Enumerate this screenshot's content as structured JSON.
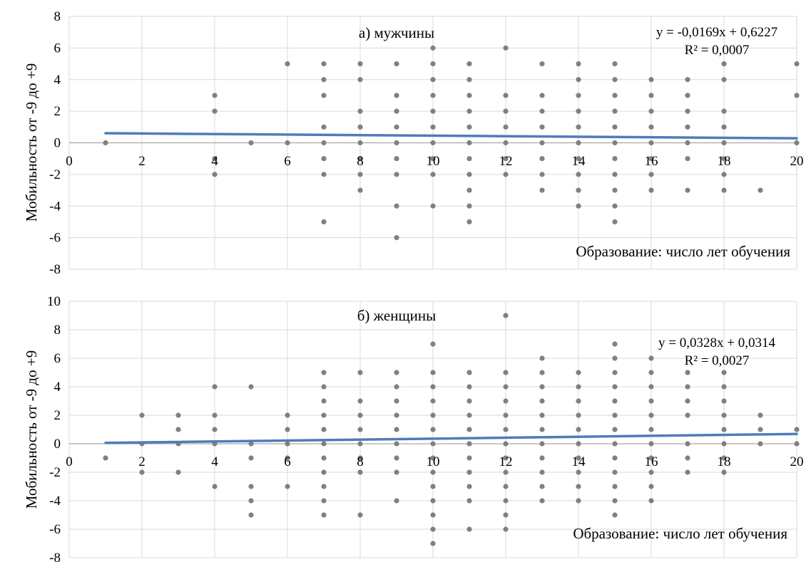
{
  "chart_data": [
    {
      "type": "scatter",
      "title": "а) мужчины",
      "xlabel": "Образование: число лет обучения",
      "ylabel": "Мобильность от -9 до +9",
      "xlim": [
        0,
        20
      ],
      "ylim": [
        -8,
        8
      ],
      "xticks": [
        0,
        2,
        4,
        6,
        8,
        10,
        12,
        14,
        16,
        18,
        20
      ],
      "yticks": [
        -8,
        -6,
        -4,
        -2,
        0,
        2,
        4,
        6,
        8
      ],
      "grid": true,
      "point_color": "#808080",
      "trendline_color": "#4a7ebb",
      "trendline": {
        "slope": -0.0169,
        "intercept": 0.6227
      },
      "equation": "y = -0,0169x + 0,6227",
      "r_squared": "R² = 0,0007",
      "points": [
        [
          1,
          0
        ],
        [
          4,
          3
        ],
        [
          4,
          2
        ],
        [
          4,
          -1
        ],
        [
          4,
          -2
        ],
        [
          5,
          0
        ],
        [
          6,
          5
        ],
        [
          6,
          0
        ],
        [
          7,
          5
        ],
        [
          7,
          4
        ],
        [
          7,
          3
        ],
        [
          7,
          1
        ],
        [
          7,
          0
        ],
        [
          7,
          -1
        ],
        [
          7,
          -2
        ],
        [
          7,
          -5
        ],
        [
          8,
          5
        ],
        [
          8,
          4
        ],
        [
          8,
          2
        ],
        [
          8,
          1
        ],
        [
          8,
          0
        ],
        [
          8,
          -1
        ],
        [
          8,
          -2
        ],
        [
          8,
          -3
        ],
        [
          9,
          5
        ],
        [
          9,
          3
        ],
        [
          9,
          2
        ],
        [
          9,
          1
        ],
        [
          9,
          0
        ],
        [
          9,
          -1
        ],
        [
          9,
          -2
        ],
        [
          9,
          -4
        ],
        [
          9,
          -6
        ],
        [
          10,
          6
        ],
        [
          10,
          5
        ],
        [
          10,
          4
        ],
        [
          10,
          3
        ],
        [
          10,
          2
        ],
        [
          10,
          1
        ],
        [
          10,
          0
        ],
        [
          10,
          -1
        ],
        [
          10,
          -2
        ],
        [
          10,
          -4
        ],
        [
          11,
          5
        ],
        [
          11,
          4
        ],
        [
          11,
          3
        ],
        [
          11,
          2
        ],
        [
          11,
          1
        ],
        [
          11,
          0
        ],
        [
          11,
          -1
        ],
        [
          11,
          -2
        ],
        [
          11,
          -3
        ],
        [
          11,
          -4
        ],
        [
          11,
          -5
        ],
        [
          12,
          6
        ],
        [
          12,
          3
        ],
        [
          12,
          2
        ],
        [
          12,
          1
        ],
        [
          12,
          0
        ],
        [
          12,
          -1
        ],
        [
          12,
          -2
        ],
        [
          13,
          5
        ],
        [
          13,
          3
        ],
        [
          13,
          2
        ],
        [
          13,
          1
        ],
        [
          13,
          0
        ],
        [
          13,
          -1
        ],
        [
          13,
          -2
        ],
        [
          13,
          -3
        ],
        [
          14,
          5
        ],
        [
          14,
          4
        ],
        [
          14,
          3
        ],
        [
          14,
          2
        ],
        [
          14,
          1
        ],
        [
          14,
          0
        ],
        [
          14,
          -1
        ],
        [
          14,
          -2
        ],
        [
          14,
          -3
        ],
        [
          14,
          -4
        ],
        [
          15,
          5
        ],
        [
          15,
          4
        ],
        [
          15,
          3
        ],
        [
          15,
          2
        ],
        [
          15,
          1
        ],
        [
          15,
          0
        ],
        [
          15,
          -1
        ],
        [
          15,
          -2
        ],
        [
          15,
          -3
        ],
        [
          15,
          -4
        ],
        [
          15,
          -5
        ],
        [
          16,
          4
        ],
        [
          16,
          3
        ],
        [
          16,
          2
        ],
        [
          16,
          1
        ],
        [
          16,
          0
        ],
        [
          16,
          -1
        ],
        [
          16,
          -2
        ],
        [
          16,
          -3
        ],
        [
          17,
          4
        ],
        [
          17,
          3
        ],
        [
          17,
          2
        ],
        [
          17,
          1
        ],
        [
          17,
          0
        ],
        [
          17,
          -1
        ],
        [
          17,
          -3
        ],
        [
          18,
          5
        ],
        [
          18,
          4
        ],
        [
          18,
          2
        ],
        [
          18,
          1
        ],
        [
          18,
          0
        ],
        [
          18,
          -1
        ],
        [
          18,
          -2
        ],
        [
          18,
          -3
        ],
        [
          19,
          -3
        ],
        [
          20,
          5
        ],
        [
          20,
          3
        ],
        [
          20,
          0
        ]
      ]
    },
    {
      "type": "scatter",
      "title": "б) женщины",
      "xlabel": "Образование: число лет обучения",
      "ylabel": "Мобильность от -9 до +9",
      "xlim": [
        0,
        20
      ],
      "ylim": [
        -8,
        10
      ],
      "xticks": [
        0,
        2,
        4,
        6,
        8,
        10,
        12,
        14,
        16,
        18,
        20
      ],
      "yticks": [
        -8,
        -6,
        -4,
        -2,
        0,
        2,
        4,
        6,
        8,
        10
      ],
      "grid": true,
      "point_color": "#808080",
      "trendline_color": "#4a7ebb",
      "trendline": {
        "slope": 0.0328,
        "intercept": 0.0314
      },
      "equation": "y = 0,0328x + 0,0314",
      "r_squared": "R² = 0,0027",
      "points": [
        [
          1,
          -1
        ],
        [
          2,
          2
        ],
        [
          2,
          0
        ],
        [
          2,
          -2
        ],
        [
          3,
          2
        ],
        [
          3,
          1
        ],
        [
          3,
          0
        ],
        [
          3,
          -2
        ],
        [
          4,
          4
        ],
        [
          4,
          2
        ],
        [
          4,
          1
        ],
        [
          4,
          0
        ],
        [
          4,
          -3
        ],
        [
          5,
          4
        ],
        [
          5,
          0
        ],
        [
          5,
          -1
        ],
        [
          5,
          -3
        ],
        [
          5,
          -4
        ],
        [
          5,
          -5
        ],
        [
          6,
          2
        ],
        [
          6,
          1
        ],
        [
          6,
          0
        ],
        [
          6,
          -1
        ],
        [
          6,
          -3
        ],
        [
          7,
          5
        ],
        [
          7,
          4
        ],
        [
          7,
          3
        ],
        [
          7,
          2
        ],
        [
          7,
          1
        ],
        [
          7,
          0
        ],
        [
          7,
          -1
        ],
        [
          7,
          -2
        ],
        [
          7,
          -3
        ],
        [
          7,
          -4
        ],
        [
          7,
          -5
        ],
        [
          8,
          5
        ],
        [
          8,
          3
        ],
        [
          8,
          2
        ],
        [
          8,
          1
        ],
        [
          8,
          0
        ],
        [
          8,
          -1
        ],
        [
          8,
          -2
        ],
        [
          8,
          -5
        ],
        [
          9,
          5
        ],
        [
          9,
          4
        ],
        [
          9,
          3
        ],
        [
          9,
          2
        ],
        [
          9,
          1
        ],
        [
          9,
          0
        ],
        [
          9,
          -1
        ],
        [
          9,
          -2
        ],
        [
          9,
          -4
        ],
        [
          10,
          7
        ],
        [
          10,
          5
        ],
        [
          10,
          4
        ],
        [
          10,
          3
        ],
        [
          10,
          2
        ],
        [
          10,
          1
        ],
        [
          10,
          0
        ],
        [
          10,
          -1
        ],
        [
          10,
          -2
        ],
        [
          10,
          -3
        ],
        [
          10,
          -4
        ],
        [
          10,
          -5
        ],
        [
          10,
          -6
        ],
        [
          10,
          -7
        ],
        [
          11,
          5
        ],
        [
          11,
          4
        ],
        [
          11,
          3
        ],
        [
          11,
          2
        ],
        [
          11,
          1
        ],
        [
          11,
          0
        ],
        [
          11,
          -1
        ],
        [
          11,
          -2
        ],
        [
          11,
          -3
        ],
        [
          11,
          -4
        ],
        [
          11,
          -6
        ],
        [
          12,
          9
        ],
        [
          12,
          5
        ],
        [
          12,
          4
        ],
        [
          12,
          3
        ],
        [
          12,
          2
        ],
        [
          12,
          1
        ],
        [
          12,
          0
        ],
        [
          12,
          -1
        ],
        [
          12,
          -2
        ],
        [
          12,
          -3
        ],
        [
          12,
          -4
        ],
        [
          12,
          -5
        ],
        [
          12,
          -6
        ],
        [
          13,
          6
        ],
        [
          13,
          5
        ],
        [
          13,
          4
        ],
        [
          13,
          3
        ],
        [
          13,
          2
        ],
        [
          13,
          1
        ],
        [
          13,
          0
        ],
        [
          13,
          -1
        ],
        [
          13,
          -2
        ],
        [
          13,
          -3
        ],
        [
          13,
          -4
        ],
        [
          14,
          5
        ],
        [
          14,
          4
        ],
        [
          14,
          3
        ],
        [
          14,
          2
        ],
        [
          14,
          1
        ],
        [
          14,
          0
        ],
        [
          14,
          -1
        ],
        [
          14,
          -2
        ],
        [
          14,
          -3
        ],
        [
          14,
          -4
        ],
        [
          15,
          7
        ],
        [
          15,
          6
        ],
        [
          15,
          5
        ],
        [
          15,
          4
        ],
        [
          15,
          3
        ],
        [
          15,
          2
        ],
        [
          15,
          1
        ],
        [
          15,
          0
        ],
        [
          15,
          -1
        ],
        [
          15,
          -2
        ],
        [
          15,
          -3
        ],
        [
          15,
          -4
        ],
        [
          15,
          -5
        ],
        [
          16,
          6
        ],
        [
          16,
          5
        ],
        [
          16,
          4
        ],
        [
          16,
          3
        ],
        [
          16,
          2
        ],
        [
          16,
          1
        ],
        [
          16,
          0
        ],
        [
          16,
          -1
        ],
        [
          16,
          -2
        ],
        [
          16,
          -3
        ],
        [
          16,
          -4
        ],
        [
          17,
          5
        ],
        [
          17,
          4
        ],
        [
          17,
          3
        ],
        [
          17,
          2
        ],
        [
          17,
          0
        ],
        [
          17,
          -1
        ],
        [
          17,
          -2
        ],
        [
          18,
          5
        ],
        [
          18,
          4
        ],
        [
          18,
          3
        ],
        [
          18,
          2
        ],
        [
          18,
          1
        ],
        [
          18,
          0
        ],
        [
          18,
          -1
        ],
        [
          18,
          -2
        ],
        [
          19,
          2
        ],
        [
          19,
          1
        ],
        [
          19,
          0
        ],
        [
          20,
          1
        ],
        [
          20,
          0
        ]
      ]
    }
  ]
}
